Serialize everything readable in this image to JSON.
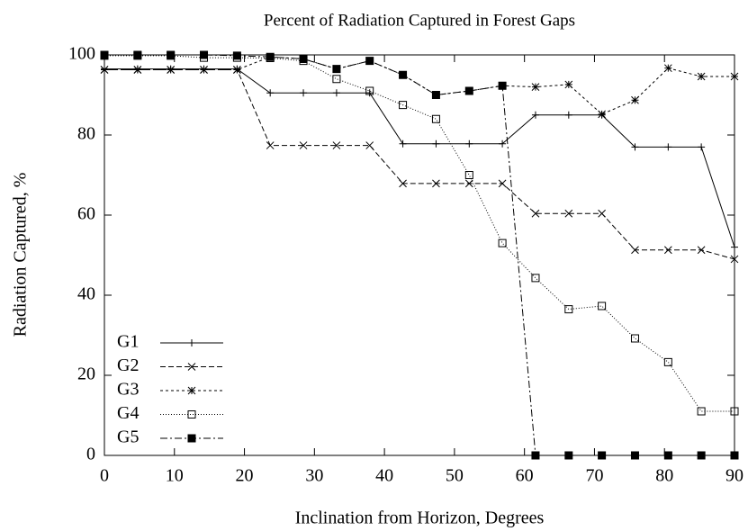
{
  "chart_data": {
    "type": "line",
    "title": "Percent of Radiation Captured in Forest Gaps",
    "x_label": "Inclination from Horizon, Degrees",
    "y_label": "Radiation Captured, %",
    "x": [
      0,
      4.74,
      9.47,
      14.21,
      18.95,
      23.68,
      28.42,
      33.16,
      37.89,
      42.63,
      47.37,
      52.11,
      56.84,
      61.58,
      66.32,
      71.05,
      75.79,
      80.53,
      85.26,
      90
    ],
    "series": [
      {
        "name": "G1",
        "color": "#000000",
        "marker": "plus",
        "dash": "none",
        "values": [
          96.5,
          96.5,
          96.5,
          96.5,
          96.5,
          90.5,
          90.5,
          90.5,
          90.5,
          77.8,
          77.8,
          77.8,
          77.8,
          85,
          85,
          85,
          77,
          77,
          77,
          52
        ]
      },
      {
        "name": "G2",
        "color": "#000000",
        "marker": "cross",
        "dash": "6,3",
        "values": [
          96.3,
          96.3,
          96.3,
          96.3,
          96.3,
          77.4,
          77.4,
          77.4,
          77.4,
          67.9,
          67.9,
          67.9,
          67.9,
          60.4,
          60.4,
          60.4,
          51.3,
          51.3,
          51.3,
          49
        ]
      },
      {
        "name": "G3",
        "color": "#000000",
        "marker": "star",
        "dash": "3,3",
        "values": [
          96.3,
          96.3,
          96.3,
          96.3,
          96.3,
          99.5,
          99,
          96.5,
          98.5,
          95,
          90,
          91,
          92.3,
          92,
          92.6,
          85.2,
          88.7,
          96.7,
          94.6,
          94.6
        ]
      },
      {
        "name": "G4",
        "color": "#000000",
        "marker": "square",
        "dash": "1,2",
        "values": [
          99.8,
          99.8,
          99.8,
          99.3,
          99.3,
          99.2,
          98.5,
          94,
          91,
          87.5,
          84,
          70,
          53,
          44.3,
          36.5,
          37.3,
          29.2,
          23.3,
          11,
          11
        ]
      },
      {
        "name": "G5",
        "color": "#000000",
        "marker": "filled-square",
        "dash": "8,3,2,3",
        "values": [
          100,
          100,
          100,
          100,
          99.8,
          99.5,
          99,
          96.5,
          98.5,
          95,
          90,
          91,
          92.3,
          0,
          0,
          0,
          0,
          0,
          0,
          0
        ]
      }
    ],
    "xlim": [
      0,
      90
    ],
    "xticks": [
      0,
      10,
      20,
      30,
      40,
      50,
      60,
      70,
      80,
      90
    ],
    "ylim": [
      0,
      100
    ],
    "yticks": [
      0,
      20,
      40,
      60,
      80,
      100
    ],
    "legend": "lower left"
  }
}
